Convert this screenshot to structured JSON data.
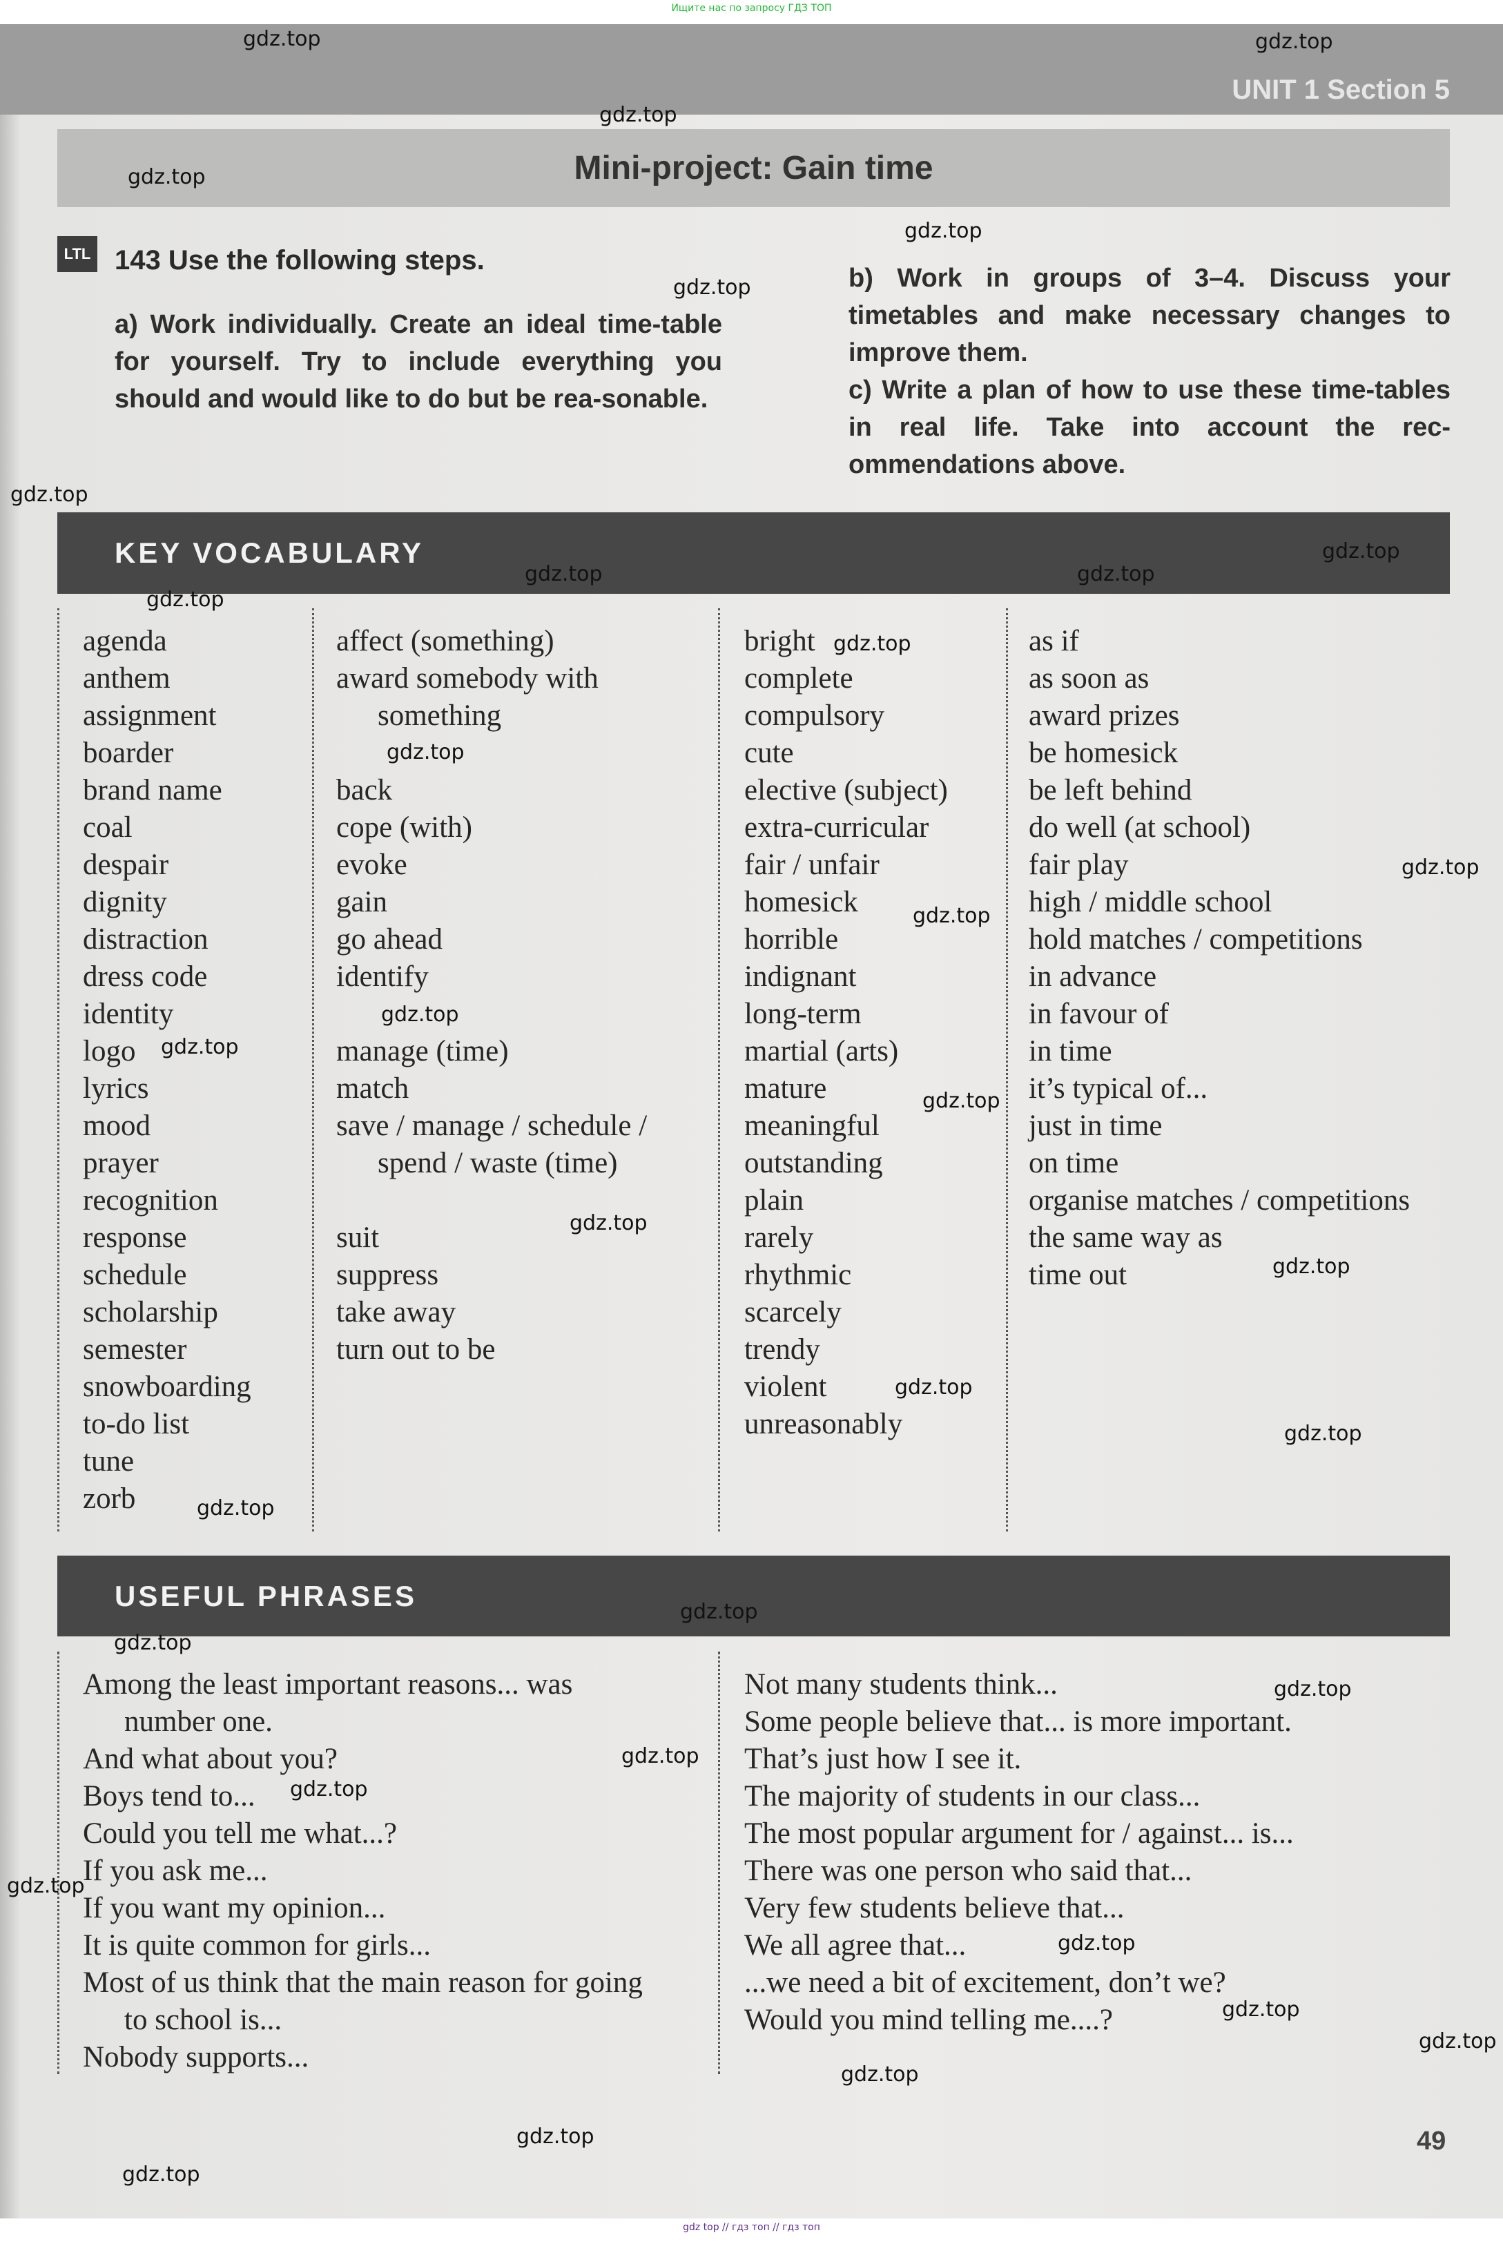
{
  "top_note": "Ищите нас по запросу ГДЗ ТОП",
  "footer_note": "gdz top // гдз топ // гдз топ",
  "header": {
    "unit_section": "UNIT 1 Section 5"
  },
  "mini_project": {
    "title": "Mini-project:  Gain time"
  },
  "task": {
    "badge": "LTL",
    "heading": "143 Use the following steps.",
    "a": "a) Work individually. Create an ideal time-table for yourself. Try to include everything you should and would like to do but be rea-sonable.",
    "b": "b) Work in groups of 3–4. Discuss your timetables and make necessary changes to improve them.",
    "c": "c) Write a plan of how to use these time-tables in real life. Take into account the rec-ommendations above."
  },
  "key_vocabulary": {
    "title": "KEY VOCABULARY",
    "columns": [
      [
        {
          "text": "agenda"
        },
        {
          "text": "anthem"
        },
        {
          "text": "assignment"
        },
        {
          "text": "boarder"
        },
        {
          "text": "brand name"
        },
        {
          "text": "coal"
        },
        {
          "text": "despair"
        },
        {
          "text": "dignity"
        },
        {
          "text": "distraction"
        },
        {
          "text": "dress code"
        },
        {
          "text": "identity"
        },
        {
          "text": "logo"
        },
        {
          "text": "lyrics"
        },
        {
          "text": "mood"
        },
        {
          "text": "prayer"
        },
        {
          "text": "recognition"
        },
        {
          "text": "response"
        },
        {
          "text": "schedule"
        },
        {
          "text": "scholarship"
        },
        {
          "text": "semester"
        },
        {
          "text": "snowboarding"
        },
        {
          "text": "to-do list"
        },
        {
          "text": "tune"
        },
        {
          "text": "zorb"
        }
      ],
      [
        {
          "text": "affect (something)"
        },
        {
          "text": "award somebody with"
        },
        {
          "text": "something",
          "indent": true
        },
        {
          "text": "back",
          "gap": true
        },
        {
          "text": "cope (with)"
        },
        {
          "text": "evoke"
        },
        {
          "text": "gain"
        },
        {
          "text": "go ahead"
        },
        {
          "text": "identify"
        },
        {
          "text": "manage (time)",
          "gap": true
        },
        {
          "text": "match"
        },
        {
          "text": "save / manage / schedule /"
        },
        {
          "text": "spend / waste (time)",
          "indent": true
        },
        {
          "text": "suit",
          "gap": true
        },
        {
          "text": "suppress"
        },
        {
          "text": "take away"
        },
        {
          "text": "turn out to be"
        }
      ],
      [
        {
          "text": "bright"
        },
        {
          "text": "complete"
        },
        {
          "text": "compulsory"
        },
        {
          "text": "cute"
        },
        {
          "text": "elective (subject)"
        },
        {
          "text": "extra-curricular"
        },
        {
          "text": "fair / unfair"
        },
        {
          "text": "homesick"
        },
        {
          "text": "horrible"
        },
        {
          "text": "indignant"
        },
        {
          "text": "long-term"
        },
        {
          "text": "martial (arts)"
        },
        {
          "text": "mature"
        },
        {
          "text": "meaningful"
        },
        {
          "text": "outstanding"
        },
        {
          "text": "plain"
        },
        {
          "text": "rarely"
        },
        {
          "text": "rhythmic"
        },
        {
          "text": "scarcely"
        },
        {
          "text": "trendy"
        },
        {
          "text": "violent"
        },
        {
          "text": "unreasonably"
        }
      ],
      [
        {
          "text": "as if"
        },
        {
          "text": "as soon as"
        },
        {
          "text": "award prizes"
        },
        {
          "text": "be homesick"
        },
        {
          "text": "be left behind"
        },
        {
          "text": "do well (at school)"
        },
        {
          "text": "fair play"
        },
        {
          "text": "high / middle school"
        },
        {
          "text": "hold matches / competitions"
        },
        {
          "text": "in advance"
        },
        {
          "text": "in favour of"
        },
        {
          "text": "in time"
        },
        {
          "text": "it’s typical of..."
        },
        {
          "text": "just in time"
        },
        {
          "text": "on time"
        },
        {
          "text": "organise matches / competitions"
        },
        {
          "text": "the same way as"
        },
        {
          "text": "time out"
        }
      ]
    ]
  },
  "useful_phrases": {
    "title": "USEFUL PHRASES",
    "columns": [
      [
        {
          "text": "Among the least important reasons... was"
        },
        {
          "text": "number one.",
          "indent": true
        },
        {
          "text": "And what about you?"
        },
        {
          "text": "Boys tend to..."
        },
        {
          "text": "Could you tell me what...?"
        },
        {
          "text": "If you ask me..."
        },
        {
          "text": "If you want my opinion..."
        },
        {
          "text": "It is quite common for girls..."
        },
        {
          "text": "Most of us think that the main reason for going"
        },
        {
          "text": "to school is...",
          "indent": true
        },
        {
          "text": "Nobody supports..."
        }
      ],
      [
        {
          "text": "Not many students think..."
        },
        {
          "text": "Some people believe that... is more important."
        },
        {
          "text": "That’s just how I see it."
        },
        {
          "text": "The majority of students in our class..."
        },
        {
          "text": "The most popular argument for / against... is..."
        },
        {
          "text": "There was one person who said that..."
        },
        {
          "text": "Very few students believe that..."
        },
        {
          "text": "We all agree that..."
        },
        {
          "text": "...we need a bit of excitement, don’t we?"
        },
        {
          "text": "Would you mind telling me....?"
        }
      ]
    ]
  },
  "page_number": "49",
  "watermark": "gdz.top"
}
